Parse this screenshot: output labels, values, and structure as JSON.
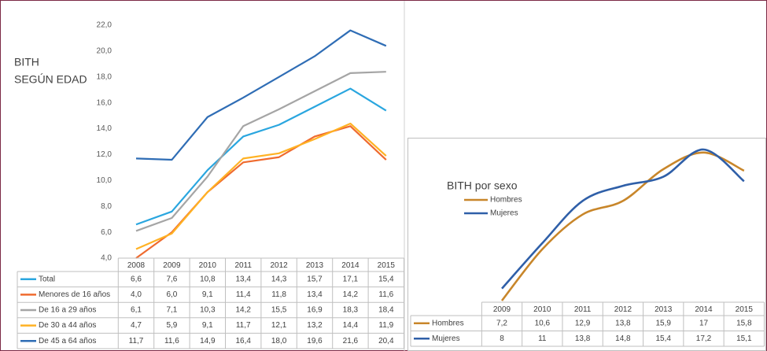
{
  "chart_data": [
    {
      "type": "line",
      "title": [
        "BITH",
        "SEGÚN EDAD"
      ],
      "categories": [
        "2008",
        "2009",
        "2010",
        "2011",
        "2012",
        "2013",
        "2014",
        "2015"
      ],
      "ylim": [
        4,
        22
      ],
      "yticks": [
        {
          "value": 4,
          "label": "4,0"
        },
        {
          "value": 6,
          "label": "6,0"
        },
        {
          "value": 8,
          "label": "8,0"
        },
        {
          "value": 10,
          "label": "10,0"
        },
        {
          "value": 12,
          "label": "12,0"
        },
        {
          "value": 14,
          "label": "14,0"
        },
        {
          "value": 16,
          "label": "16,0"
        },
        {
          "value": 18,
          "label": "18,0"
        },
        {
          "value": 20,
          "label": "20,0"
        },
        {
          "value": 22,
          "label": "22,0"
        }
      ],
      "grid": false,
      "series": [
        {
          "name": "Total",
          "color": "#2aa6df",
          "values": [
            6.6,
            7.6,
            10.8,
            13.4,
            14.3,
            15.7,
            17.1,
            15.4
          ],
          "value_labels": [
            "6,6",
            "7,6",
            "10,8",
            "13,4",
            "14,3",
            "15,7",
            "17,1",
            "15,4"
          ]
        },
        {
          "name": "Menores de 16 años",
          "color": "#ef6b2f",
          "values": [
            4.0,
            6.0,
            9.1,
            11.4,
            11.8,
            13.4,
            14.2,
            11.6
          ],
          "value_labels": [
            "4,0",
            "6,0",
            "9,1",
            "11,4",
            "11,8",
            "13,4",
            "14,2",
            "11,6"
          ]
        },
        {
          "name": "De 16 a 29 años",
          "color": "#a5a5a5",
          "values": [
            6.1,
            7.1,
            10.3,
            14.2,
            15.5,
            16.9,
            18.3,
            18.4
          ],
          "value_labels": [
            "6,1",
            "7,1",
            "10,3",
            "14,2",
            "15,5",
            "16,9",
            "18,3",
            "18,4"
          ]
        },
        {
          "name": "De 30 a 44 años",
          "color": "#ffb224",
          "values": [
            4.7,
            5.9,
            9.1,
            11.7,
            12.1,
            13.2,
            14.4,
            11.9
          ],
          "value_labels": [
            "4,7",
            "5,9",
            "9,1",
            "11,7",
            "12,1",
            "13,2",
            "14,4",
            "11,9"
          ]
        },
        {
          "name": "De 45 a 64 años",
          "color": "#2f6db5",
          "values": [
            11.7,
            11.6,
            14.9,
            16.4,
            18.0,
            19.6,
            21.6,
            20.4
          ],
          "value_labels": [
            "11,7",
            "11,6",
            "14,9",
            "16,4",
            "18,0",
            "19,6",
            "21,6",
            "20,4"
          ]
        }
      ]
    },
    {
      "type": "line",
      "smooth": true,
      "title": "BITH por sexo",
      "categories": [
        "2009",
        "2010",
        "2011",
        "2012",
        "2013",
        "2014",
        "2015"
      ],
      "series": [
        {
          "name": "Hombres",
          "color": "#c8862a",
          "values": [
            7.2,
            10.6,
            12.9,
            13.8,
            15.9,
            17,
            15.8
          ],
          "value_labels": [
            "7,2",
            "10,6",
            "12,9",
            "13,8",
            "15,9",
            "17",
            "15,8"
          ]
        },
        {
          "name": "Mujeres",
          "color": "#2f5fa8",
          "values": [
            8,
            11,
            13.8,
            14.8,
            15.4,
            17.2,
            15.1
          ],
          "value_labels": [
            "8",
            "11",
            "13,8",
            "14,8",
            "15,4",
            "17,2",
            "15,1"
          ]
        }
      ]
    }
  ]
}
